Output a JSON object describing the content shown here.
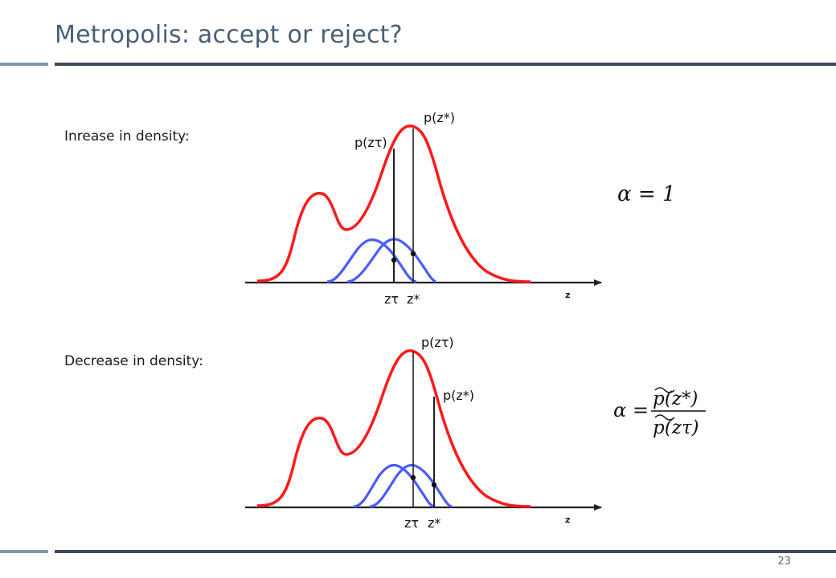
{
  "slide": {
    "title": "Metropolis: accept or reject?",
    "page_number": "23"
  },
  "panels": [
    {
      "label": "Inrease in density:",
      "current_value_label": "p(zτ)",
      "proposal_value_label": "p(z*)",
      "current_x_label": "zτ",
      "proposal_x_label": "z*",
      "axis_label": "z",
      "formula": "α = 1"
    },
    {
      "label": "Decrease in density:",
      "current_value_label": "p(zτ)",
      "proposal_value_label": "p(z*)",
      "current_x_label": "zτ",
      "proposal_x_label": "z*",
      "axis_label": "z",
      "formula_lhs": "α =",
      "formula_numerator": "p(z*)",
      "formula_denominator": "p(zτ)"
    }
  ],
  "colors": {
    "target_density": "#ff1a1a",
    "proposal_density": "#4a5cff",
    "title": "#4a5f76",
    "rule_dark": "#3d4b5c",
    "rule_light": "#7f97b3"
  }
}
